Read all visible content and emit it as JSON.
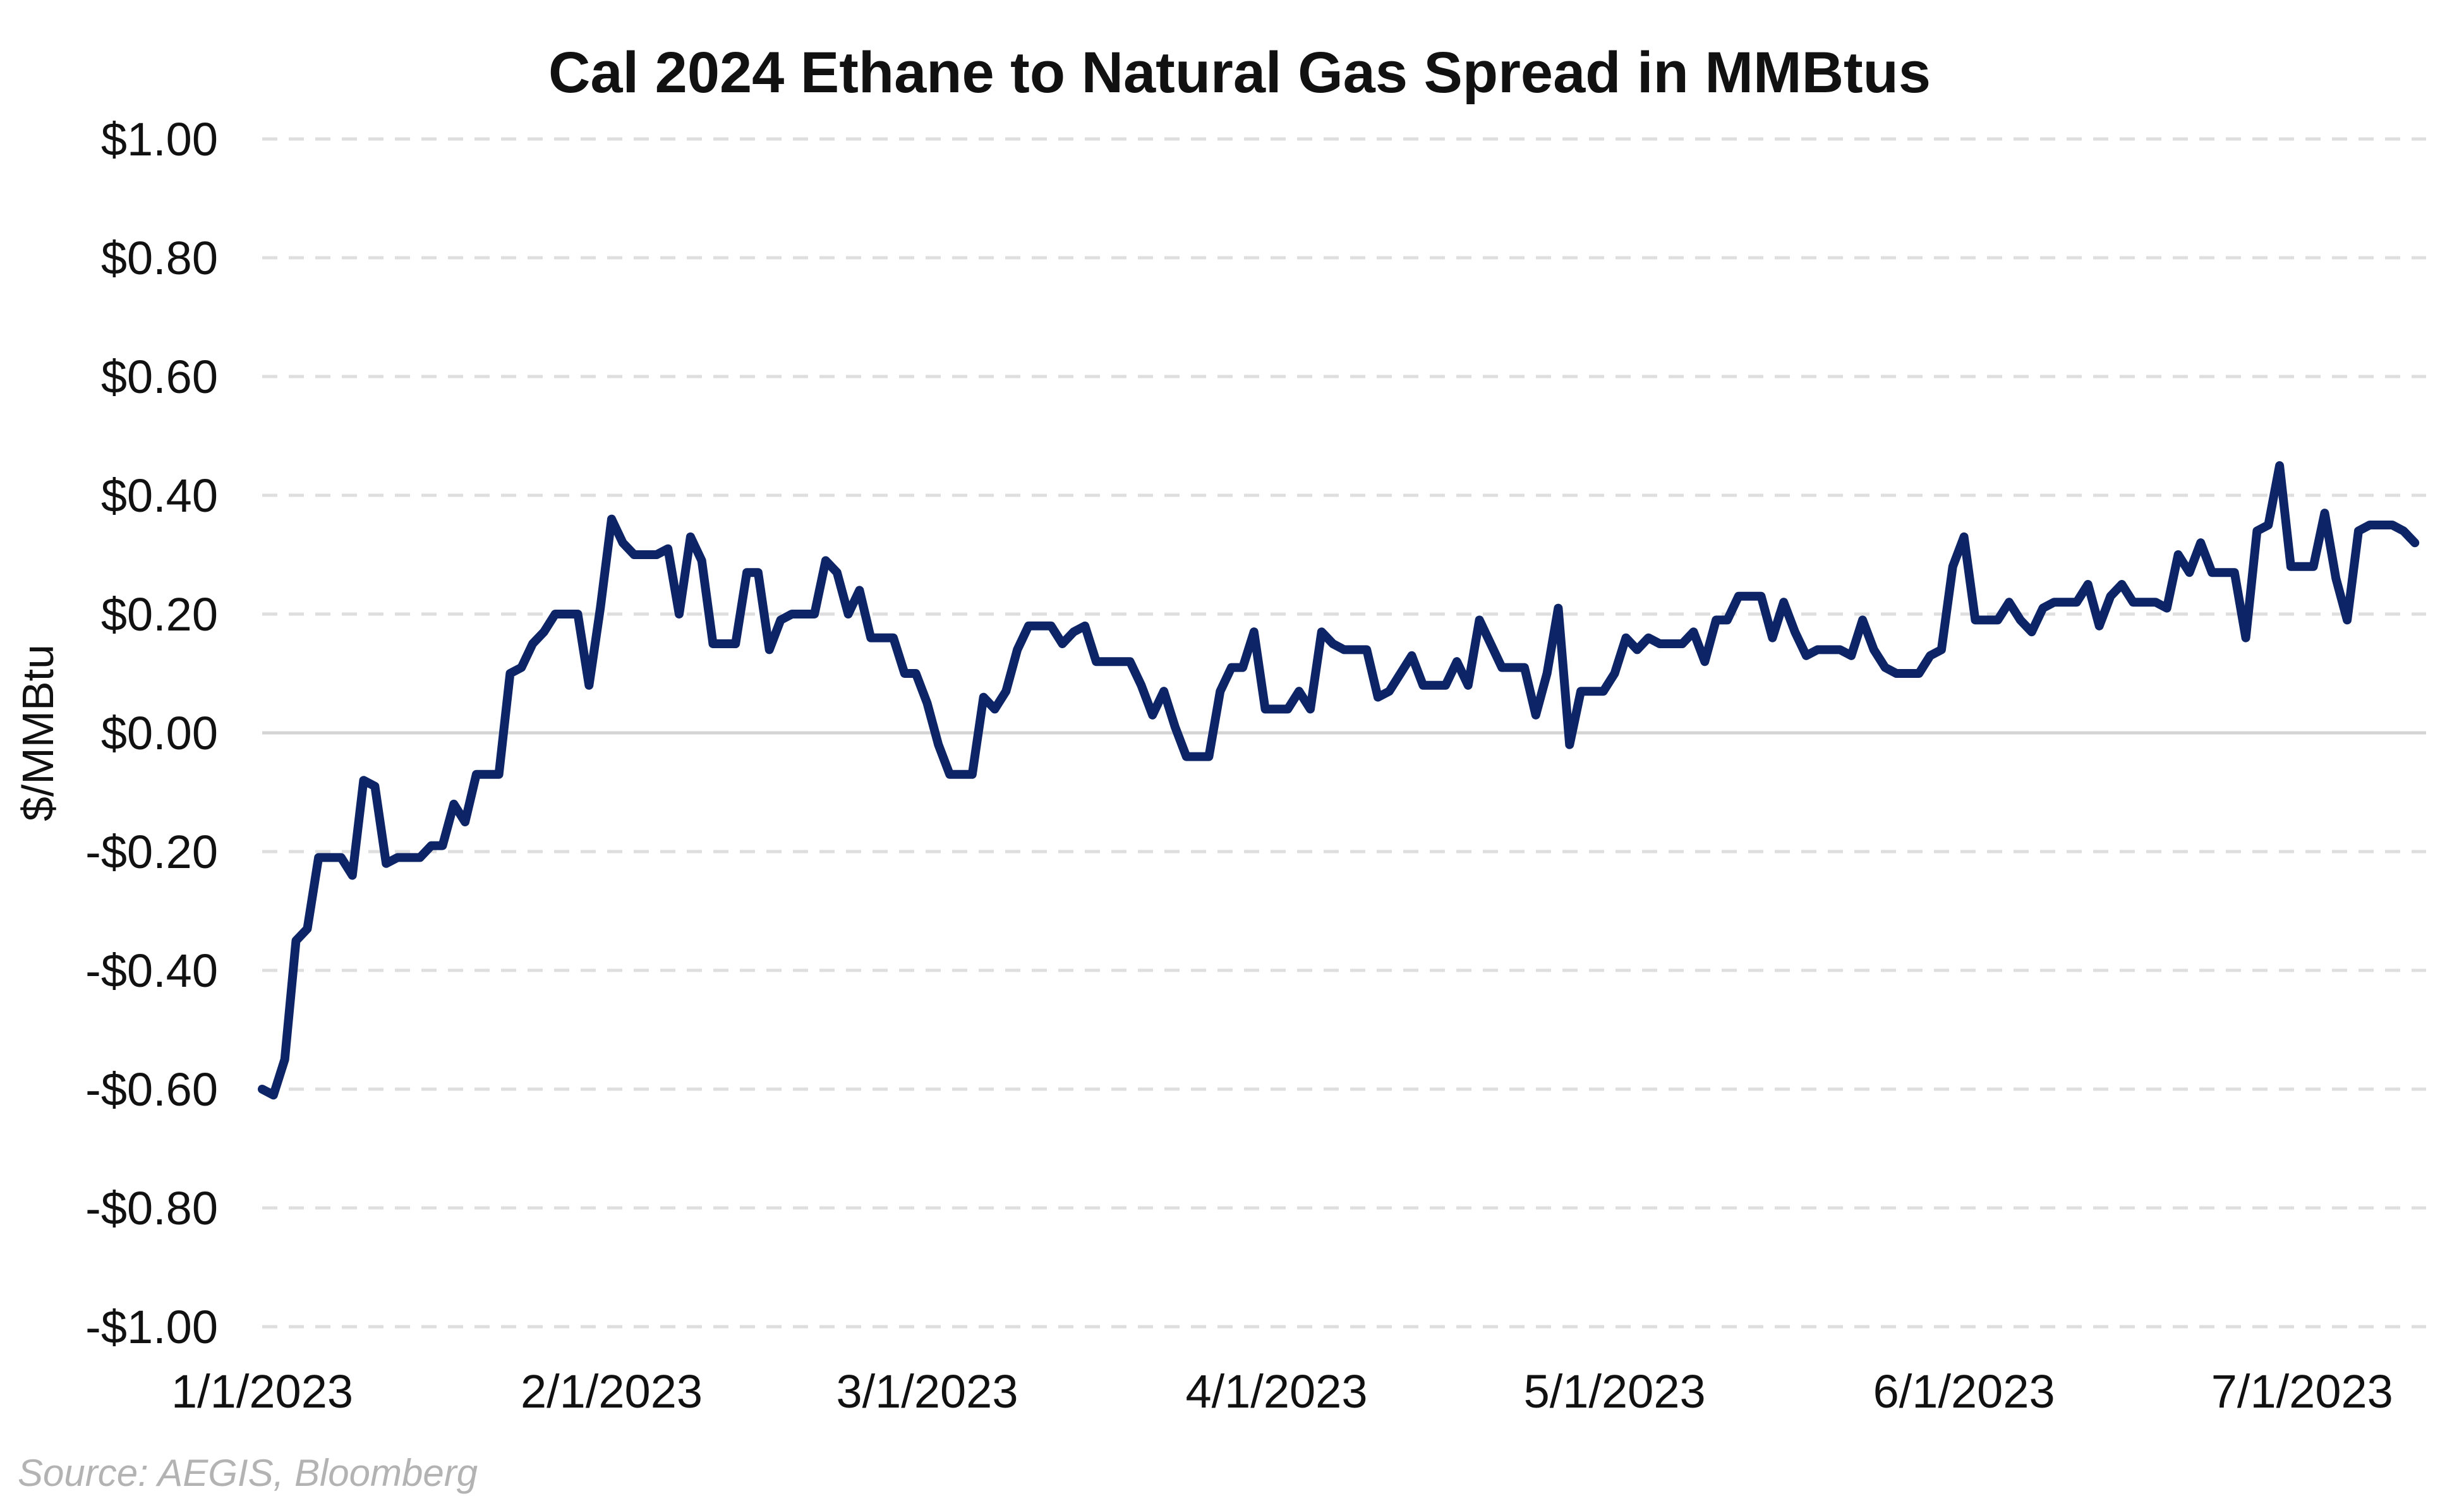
{
  "chart_data": {
    "type": "line",
    "title": "Cal 2024 Ethane to Natural Gas Spread in MMBtus",
    "xlabel": "",
    "ylabel": "$/MMBtu",
    "ylim": [
      -1.0,
      1.0
    ],
    "xlim": [
      "2023-01-01",
      "2023-07-12"
    ],
    "y_ticks": [
      1.0,
      0.8,
      0.6,
      0.4,
      0.2,
      0.0,
      -0.2,
      -0.4,
      -0.6,
      -0.8,
      -1.0
    ],
    "y_tick_labels": [
      "$1.00",
      "$0.80",
      "$0.60",
      "$0.40",
      "$0.20",
      "$0.00",
      "-$0.20",
      "-$0.40",
      "-$0.60",
      "-$0.80",
      "-$1.00"
    ],
    "x_ticks": [
      "2023-01-01",
      "2023-02-01",
      "2023-03-01",
      "2023-04-01",
      "2023-05-01",
      "2023-06-01",
      "2023-07-01"
    ],
    "x_tick_labels": [
      "1/1/2023",
      "2/1/2023",
      "3/1/2023",
      "4/1/2023",
      "5/1/2023",
      "6/1/2023",
      "7/1/2023"
    ],
    "grid": true,
    "legend": "none",
    "series": [
      {
        "color": "#0d2466",
        "points": [
          [
            "2023-01-01",
            -0.6
          ],
          [
            "2023-01-02",
            -0.61
          ],
          [
            "2023-01-03",
            -0.55
          ],
          [
            "2023-01-04",
            -0.35
          ],
          [
            "2023-01-05",
            -0.33
          ],
          [
            "2023-01-06",
            -0.21
          ],
          [
            "2023-01-08",
            -0.21
          ],
          [
            "2023-01-09",
            -0.24
          ],
          [
            "2023-01-10",
            -0.08
          ],
          [
            "2023-01-11",
            -0.09
          ],
          [
            "2023-01-12",
            -0.22
          ],
          [
            "2023-01-13",
            -0.21
          ],
          [
            "2023-01-15",
            -0.21
          ],
          [
            "2023-01-16",
            -0.19
          ],
          [
            "2023-01-17",
            -0.19
          ],
          [
            "2023-01-18",
            -0.12
          ],
          [
            "2023-01-19",
            -0.15
          ],
          [
            "2023-01-20",
            -0.07
          ],
          [
            "2023-01-22",
            -0.07
          ],
          [
            "2023-01-23",
            0.1
          ],
          [
            "2023-01-24",
            0.11
          ],
          [
            "2023-01-25",
            0.15
          ],
          [
            "2023-01-26",
            0.17
          ],
          [
            "2023-01-27",
            0.2
          ],
          [
            "2023-01-29",
            0.2
          ],
          [
            "2023-01-30",
            0.08
          ],
          [
            "2023-01-31",
            0.21
          ],
          [
            "2023-02-01",
            0.36
          ],
          [
            "2023-02-02",
            0.32
          ],
          [
            "2023-02-03",
            0.3
          ],
          [
            "2023-02-05",
            0.3
          ],
          [
            "2023-02-06",
            0.31
          ],
          [
            "2023-02-07",
            0.2
          ],
          [
            "2023-02-08",
            0.33
          ],
          [
            "2023-02-09",
            0.29
          ],
          [
            "2023-02-10",
            0.15
          ],
          [
            "2023-02-12",
            0.15
          ],
          [
            "2023-02-13",
            0.27
          ],
          [
            "2023-02-14",
            0.27
          ],
          [
            "2023-02-15",
            0.14
          ],
          [
            "2023-02-16",
            0.19
          ],
          [
            "2023-02-17",
            0.2
          ],
          [
            "2023-02-19",
            0.2
          ],
          [
            "2023-02-20",
            0.29
          ],
          [
            "2023-02-21",
            0.27
          ],
          [
            "2023-02-22",
            0.2
          ],
          [
            "2023-02-23",
            0.24
          ],
          [
            "2023-02-24",
            0.16
          ],
          [
            "2023-02-26",
            0.16
          ],
          [
            "2023-02-27",
            0.1
          ],
          [
            "2023-02-28",
            0.1
          ],
          [
            "2023-03-01",
            0.05
          ],
          [
            "2023-03-02",
            -0.02
          ],
          [
            "2023-03-03",
            -0.07
          ],
          [
            "2023-03-05",
            -0.07
          ],
          [
            "2023-03-06",
            0.06
          ],
          [
            "2023-03-07",
            0.04
          ],
          [
            "2023-03-08",
            0.07
          ],
          [
            "2023-03-09",
            0.14
          ],
          [
            "2023-03-10",
            0.18
          ],
          [
            "2023-03-12",
            0.18
          ],
          [
            "2023-03-13",
            0.15
          ],
          [
            "2023-03-14",
            0.17
          ],
          [
            "2023-03-15",
            0.18
          ],
          [
            "2023-03-16",
            0.12
          ],
          [
            "2023-03-17",
            0.12
          ],
          [
            "2023-03-19",
            0.12
          ],
          [
            "2023-03-20",
            0.08
          ],
          [
            "2023-03-21",
            0.03
          ],
          [
            "2023-03-22",
            0.07
          ],
          [
            "2023-03-23",
            0.01
          ],
          [
            "2023-03-24",
            -0.04
          ],
          [
            "2023-03-26",
            -0.04
          ],
          [
            "2023-03-27",
            0.07
          ],
          [
            "2023-03-28",
            0.11
          ],
          [
            "2023-03-29",
            0.11
          ],
          [
            "2023-03-30",
            0.17
          ],
          [
            "2023-03-31",
            0.04
          ],
          [
            "2023-04-02",
            0.04
          ],
          [
            "2023-04-03",
            0.07
          ],
          [
            "2023-04-04",
            0.04
          ],
          [
            "2023-04-05",
            0.17
          ],
          [
            "2023-04-06",
            0.15
          ],
          [
            "2023-04-07",
            0.14
          ],
          [
            "2023-04-09",
            0.14
          ],
          [
            "2023-04-10",
            0.06
          ],
          [
            "2023-04-11",
            0.07
          ],
          [
            "2023-04-12",
            0.1
          ],
          [
            "2023-04-13",
            0.13
          ],
          [
            "2023-04-14",
            0.08
          ],
          [
            "2023-04-16",
            0.08
          ],
          [
            "2023-04-17",
            0.12
          ],
          [
            "2023-04-18",
            0.08
          ],
          [
            "2023-04-19",
            0.19
          ],
          [
            "2023-04-20",
            0.15
          ],
          [
            "2023-04-21",
            0.11
          ],
          [
            "2023-04-23",
            0.11
          ],
          [
            "2023-04-24",
            0.03
          ],
          [
            "2023-04-25",
            0.1
          ],
          [
            "2023-04-26",
            0.21
          ],
          [
            "2023-04-27",
            -0.02
          ],
          [
            "2023-04-28",
            0.07
          ],
          [
            "2023-04-30",
            0.07
          ],
          [
            "2023-05-01",
            0.1
          ],
          [
            "2023-05-02",
            0.16
          ],
          [
            "2023-05-03",
            0.14
          ],
          [
            "2023-05-04",
            0.16
          ],
          [
            "2023-05-05",
            0.15
          ],
          [
            "2023-05-07",
            0.15
          ],
          [
            "2023-05-08",
            0.17
          ],
          [
            "2023-05-09",
            0.12
          ],
          [
            "2023-05-10",
            0.19
          ],
          [
            "2023-05-11",
            0.19
          ],
          [
            "2023-05-12",
            0.23
          ],
          [
            "2023-05-14",
            0.23
          ],
          [
            "2023-05-15",
            0.16
          ],
          [
            "2023-05-16",
            0.22
          ],
          [
            "2023-05-17",
            0.17
          ],
          [
            "2023-05-18",
            0.13
          ],
          [
            "2023-05-19",
            0.14
          ],
          [
            "2023-05-21",
            0.14
          ],
          [
            "2023-05-22",
            0.13
          ],
          [
            "2023-05-23",
            0.19
          ],
          [
            "2023-05-24",
            0.14
          ],
          [
            "2023-05-25",
            0.11
          ],
          [
            "2023-05-26",
            0.1
          ],
          [
            "2023-05-28",
            0.1
          ],
          [
            "2023-05-29",
            0.13
          ],
          [
            "2023-05-30",
            0.14
          ],
          [
            "2023-05-31",
            0.28
          ],
          [
            "2023-06-01",
            0.33
          ],
          [
            "2023-06-02",
            0.19
          ],
          [
            "2023-06-04",
            0.19
          ],
          [
            "2023-06-05",
            0.22
          ],
          [
            "2023-06-06",
            0.19
          ],
          [
            "2023-06-07",
            0.17
          ],
          [
            "2023-06-08",
            0.21
          ],
          [
            "2023-06-09",
            0.22
          ],
          [
            "2023-06-11",
            0.22
          ],
          [
            "2023-06-12",
            0.25
          ],
          [
            "2023-06-13",
            0.18
          ],
          [
            "2023-06-14",
            0.23
          ],
          [
            "2023-06-15",
            0.25
          ],
          [
            "2023-06-16",
            0.22
          ],
          [
            "2023-06-18",
            0.22
          ],
          [
            "2023-06-19",
            0.21
          ],
          [
            "2023-06-20",
            0.3
          ],
          [
            "2023-06-21",
            0.27
          ],
          [
            "2023-06-22",
            0.32
          ],
          [
            "2023-06-23",
            0.27
          ],
          [
            "2023-06-25",
            0.27
          ],
          [
            "2023-06-26",
            0.16
          ],
          [
            "2023-06-27",
            0.34
          ],
          [
            "2023-06-28",
            0.35
          ],
          [
            "2023-06-29",
            0.45
          ],
          [
            "2023-06-30",
            0.28
          ],
          [
            "2023-07-02",
            0.28
          ],
          [
            "2023-07-03",
            0.37
          ],
          [
            "2023-07-04",
            0.26
          ],
          [
            "2023-07-05",
            0.19
          ],
          [
            "2023-07-06",
            0.34
          ],
          [
            "2023-07-07",
            0.35
          ],
          [
            "2023-07-09",
            0.35
          ],
          [
            "2023-07-10",
            0.34
          ],
          [
            "2023-07-11",
            0.32
          ]
        ]
      }
    ]
  },
  "source_note": "Source: AEGIS, Bloomberg"
}
